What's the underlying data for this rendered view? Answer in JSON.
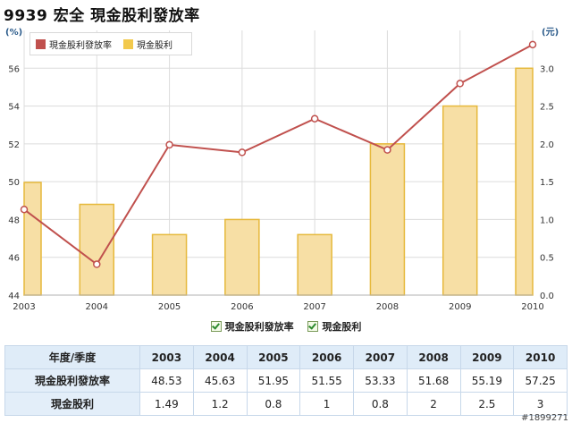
{
  "title": "9939 宏全 現金股利發放率",
  "legend": {
    "payout_label": "現金股利發放率",
    "dividend_label": "現金股利"
  },
  "checkboxes": {
    "payout_label": "現金股利發放率",
    "dividend_label": "現金股利"
  },
  "table": {
    "header_label": "年度/季度",
    "years": [
      "2003",
      "2004",
      "2005",
      "2006",
      "2007",
      "2008",
      "2009",
      "2010"
    ],
    "rows": [
      {
        "label": "現金股利發放率",
        "values": [
          "48.53",
          "45.63",
          "51.95",
          "51.55",
          "53.33",
          "51.68",
          "55.19",
          "57.25"
        ]
      },
      {
        "label": "現金股利",
        "values": [
          "1.49",
          "1.2",
          "0.8",
          "1",
          "0.8",
          "2",
          "2.5",
          "3"
        ]
      }
    ]
  },
  "watermark": "#1899271",
  "colors": {
    "line": "#c0504d",
    "bar_fill": "#f7dfa5",
    "bar_stroke": "#e6b93c",
    "grid": "#dcdcdc"
  },
  "chart_data": {
    "type": "bar",
    "categories": [
      "2003",
      "2004",
      "2005",
      "2006",
      "2007",
      "2008",
      "2009",
      "2010"
    ],
    "series": [
      {
        "name": "現金股利發放率",
        "kind": "line",
        "axis": "left",
        "values": [
          48.53,
          45.63,
          51.95,
          51.55,
          53.33,
          51.68,
          55.19,
          57.25
        ]
      },
      {
        "name": "現金股利",
        "kind": "bar",
        "axis": "right",
        "values": [
          1.49,
          1.2,
          0.8,
          1,
          0.8,
          2,
          2.5,
          3
        ]
      }
    ],
    "ylabel_left": "(%)",
    "ylabel_right": "(元)",
    "ylim_left": [
      44,
      58
    ],
    "ylim_right": [
      0,
      3.5
    ],
    "yticks_left": [
      "44",
      "46",
      "48",
      "50",
      "52",
      "54",
      "56"
    ],
    "yticks_right": [
      "0.0",
      "0.5",
      "1.0",
      "1.5",
      "2.0",
      "2.5",
      "3.0"
    ],
    "grid": true,
    "legend_position": "top-left"
  }
}
